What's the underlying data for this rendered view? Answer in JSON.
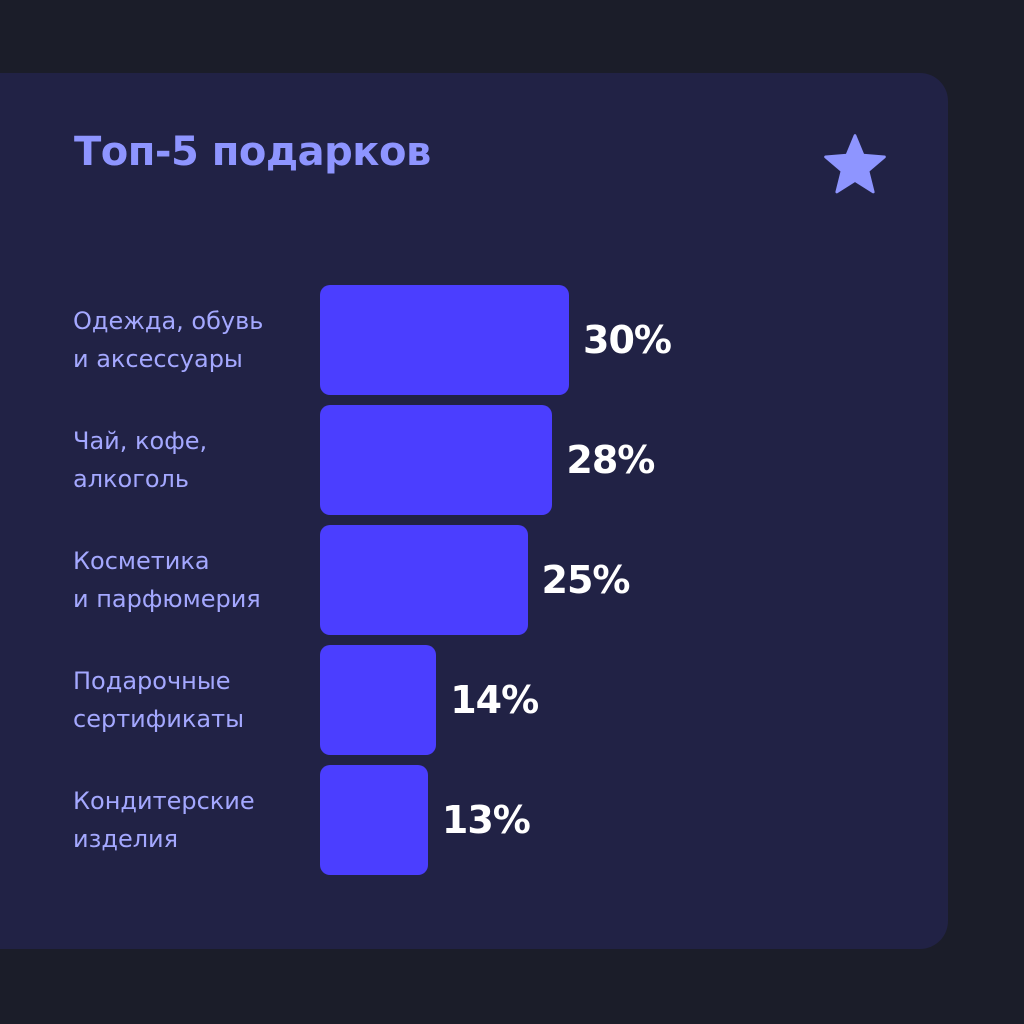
{
  "chart_data": {
    "type": "bar",
    "orientation": "horizontal",
    "title": "Топ-5 подарков",
    "value_suffix": "%",
    "categories": [
      [
        "Одежда, обувь",
        "и аксессуары"
      ],
      [
        "Чай, кофе,",
        "алкоголь"
      ],
      [
        "Косметика",
        "и парфюмерия"
      ],
      [
        "Подарочные",
        "сертификаты"
      ],
      [
        "Кондитерские",
        "изделия"
      ]
    ],
    "values": [
      30,
      28,
      25,
      14,
      13
    ],
    "data_labels": [
      "30%",
      "28%",
      "25%",
      "14%",
      "13%"
    ],
    "bar_color": "#4b3eff",
    "icon": "star-icon"
  }
}
